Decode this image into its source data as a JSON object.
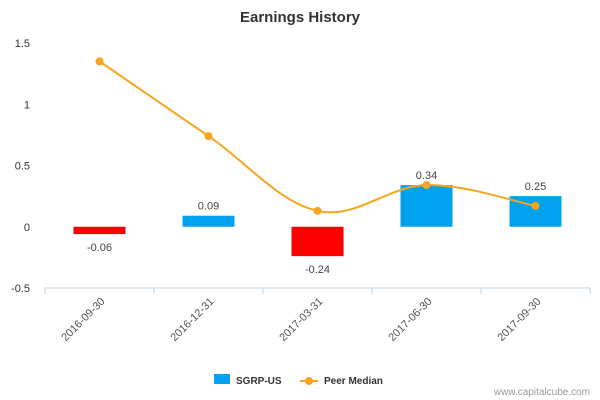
{
  "chart_data": {
    "type": "bar",
    "title": "Earnings History",
    "categories": [
      "2016-09-30",
      "2016-12-31",
      "2017-03-31",
      "2017-06-30",
      "2017-09-30"
    ],
    "ylim": [
      -0.5,
      1.5
    ],
    "yticks": [
      "-0.5",
      "0",
      "0.5",
      "1",
      "1.5"
    ],
    "series": [
      {
        "name": "SGRP-US",
        "type": "bar",
        "values": [
          -0.06,
          0.09,
          -0.24,
          0.34,
          0.25
        ],
        "labels": [
          "-0.06",
          "0.09",
          "-0.24",
          "0.34",
          "0.25"
        ],
        "color_positive": "#00a2ed",
        "color_negative": "#ff0000"
      },
      {
        "name": "Peer Median",
        "type": "line",
        "values": [
          1.35,
          0.74,
          0.13,
          0.34,
          0.17
        ],
        "color": "#f7a51c"
      }
    ],
    "legend_position": "bottom-center",
    "grid": false
  },
  "watermark": "www.capitalcube.com"
}
